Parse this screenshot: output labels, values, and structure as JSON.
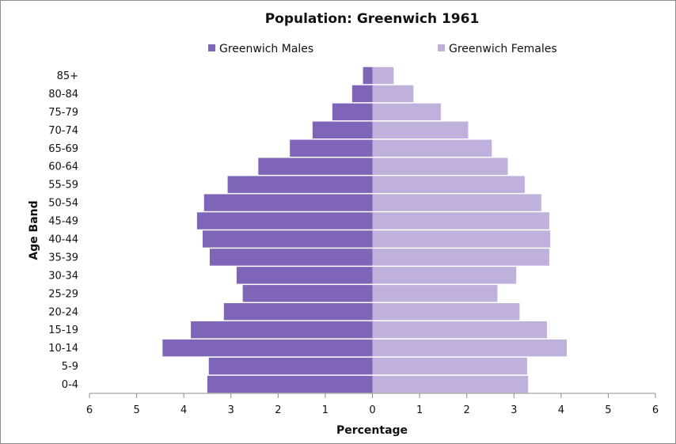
{
  "chart_data": {
    "type": "bar",
    "orientation": "horizontal",
    "title": "Population: Greenwich 1961",
    "xlabel": "Percentage",
    "ylabel": "Age Band",
    "categories": [
      "0-4",
      "5-9",
      "10-14",
      "15-19",
      "20-24",
      "25-29",
      "30-34",
      "35-39",
      "40-44",
      "45-49",
      "50-54",
      "55-59",
      "60-64",
      "65-69",
      "70-74",
      "75-79",
      "80-84",
      "85+"
    ],
    "series": [
      {
        "name": "Greenwich Males",
        "color": "#7f65b7",
        "side": "left",
        "values": [
          3.5,
          3.47,
          4.45,
          3.85,
          3.15,
          2.75,
          2.88,
          3.45,
          3.6,
          3.72,
          3.57,
          3.07,
          2.42,
          1.75,
          1.27,
          0.85,
          0.43,
          0.2
        ]
      },
      {
        "name": "Greenwich Females",
        "color": "#bfb1dc",
        "side": "right",
        "values": [
          3.3,
          3.28,
          4.12,
          3.7,
          3.12,
          2.65,
          3.05,
          3.75,
          3.77,
          3.75,
          3.58,
          3.23,
          2.87,
          2.53,
          2.03,
          1.45,
          0.87,
          0.45
        ]
      }
    ],
    "xlim": [
      -6,
      6
    ],
    "x_ticks": [
      -6,
      -5,
      -4,
      -3,
      -2,
      -1,
      0,
      1,
      2,
      3,
      4,
      5,
      6
    ],
    "x_tick_labels": [
      "6",
      "5",
      "4",
      "3",
      "2",
      "1",
      "0",
      "1",
      "2",
      "3",
      "4",
      "5",
      "6"
    ],
    "grid": false,
    "legend_position": "top"
  }
}
